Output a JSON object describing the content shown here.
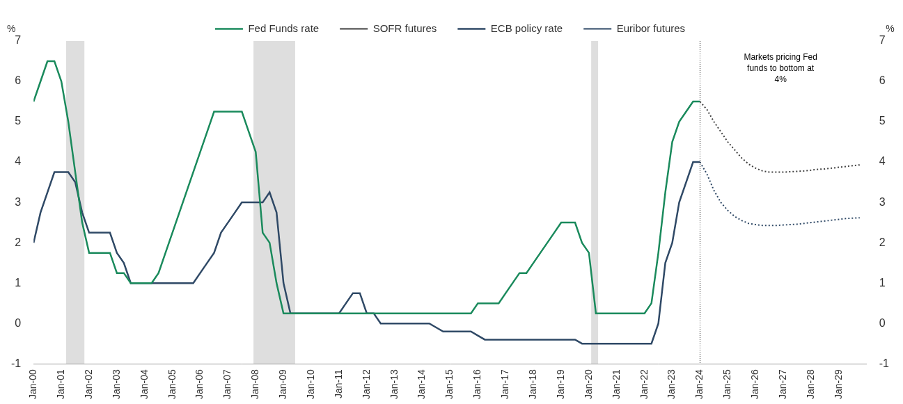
{
  "chart_data": {
    "type": "line",
    "y_label": "%",
    "y2_label": "%",
    "annotation": [
      "Markets pricing Fed",
      "funds to bottom at",
      "4%"
    ],
    "legend": "top",
    "grid": false,
    "xlim": [
      2000,
      2030
    ],
    "xticks": [
      {
        "value": 2000,
        "label": "Jan-00"
      },
      {
        "value": 2001,
        "label": "Jan-01"
      },
      {
        "value": 2002,
        "label": "Jan-02"
      },
      {
        "value": 2003,
        "label": "Jan-03"
      },
      {
        "value": 2004,
        "label": "Jan-04"
      },
      {
        "value": 2005,
        "label": "Jan-05"
      },
      {
        "value": 2006,
        "label": "Jan-06"
      },
      {
        "value": 2007,
        "label": "Jan-07"
      },
      {
        "value": 2008,
        "label": "Jan-08"
      },
      {
        "value": 2009,
        "label": "Jan-09"
      },
      {
        "value": 2010,
        "label": "Jan-10"
      },
      {
        "value": 2011,
        "label": "Jan-11"
      },
      {
        "value": 2012,
        "label": "Jan-12"
      },
      {
        "value": 2013,
        "label": "Jan-13"
      },
      {
        "value": 2014,
        "label": "Jan-14"
      },
      {
        "value": 2015,
        "label": "Jan-15"
      },
      {
        "value": 2016,
        "label": "Jan-16"
      },
      {
        "value": 2017,
        "label": "Jan-17"
      },
      {
        "value": 2018,
        "label": "Jan-18"
      },
      {
        "value": 2019,
        "label": "Jan-19"
      },
      {
        "value": 2020,
        "label": "Jan-20"
      },
      {
        "value": 2021,
        "label": "Jan-21"
      },
      {
        "value": 2022,
        "label": "Jan-22"
      },
      {
        "value": 2023,
        "label": "Jan-23"
      },
      {
        "value": 2024,
        "label": "Jan-24"
      },
      {
        "value": 2025,
        "label": "Jan-25"
      },
      {
        "value": 2026,
        "label": "Jan-26"
      },
      {
        "value": 2027,
        "label": "Jan-27"
      },
      {
        "value": 2028,
        "label": "Jan-28"
      },
      {
        "value": 2029,
        "label": "Jan-29"
      }
    ],
    "ylim": [
      -1,
      7
    ],
    "yticks": [
      -1,
      0,
      1,
      2,
      3,
      4,
      5,
      6,
      7
    ],
    "y2lim": [
      -1,
      7
    ],
    "y2ticks": [
      -1,
      0,
      1,
      2,
      3,
      4,
      5,
      6,
      7
    ],
    "shaded_periods": [
      {
        "from": 2001.17,
        "to": 2001.83
      },
      {
        "from": 2007.92,
        "to": 2009.42
      },
      {
        "from": 2020.08,
        "to": 2020.33
      }
    ],
    "forecast_start": 2024,
    "x": [
      2000,
      2000.25,
      2000.5,
      2000.75,
      2001,
      2001.25,
      2001.5,
      2001.75,
      2002,
      2002.25,
      2002.5,
      2002.75,
      2003,
      2003.25,
      2003.5,
      2003.75,
      2004,
      2004.25,
      2004.5,
      2004.75,
      2005,
      2005.25,
      2005.5,
      2005.75,
      2006,
      2006.25,
      2006.5,
      2006.75,
      2007,
      2007.25,
      2007.5,
      2007.75,
      2008,
      2008.25,
      2008.5,
      2008.75,
      2009,
      2009.25,
      2009.5,
      2009.75,
      2010,
      2010.25,
      2010.5,
      2010.75,
      2011,
      2011.25,
      2011.5,
      2011.75,
      2012,
      2012.25,
      2012.5,
      2012.75,
      2013,
      2013.25,
      2013.5,
      2013.75,
      2014,
      2014.25,
      2014.5,
      2014.75,
      2015,
      2015.25,
      2015.5,
      2015.75,
      2016,
      2016.25,
      2016.5,
      2016.75,
      2017,
      2017.25,
      2017.5,
      2017.75,
      2018,
      2018.25,
      2018.5,
      2018.75,
      2019,
      2019.25,
      2019.5,
      2019.75,
      2020,
      2020.25,
      2020.5,
      2020.75,
      2021,
      2021.25,
      2021.5,
      2021.75,
      2022,
      2022.25,
      2022.5,
      2022.75,
      2023,
      2023.25,
      2023.5,
      2023.75,
      2024,
      2024.25,
      2024.5,
      2024.75,
      2025,
      2025.25,
      2025.5,
      2025.75,
      2026,
      2026.25,
      2026.5,
      2026.75,
      2027,
      2027.25,
      2027.5,
      2027.75,
      2028,
      2028.25,
      2028.5,
      2028.75,
      2029,
      2029.25,
      2029.5,
      2029.75
    ],
    "series": [
      {
        "name": "Fed Funds rate",
        "color": "#1a8a5c",
        "line_style": "solid",
        "values": [
          5.5,
          6.0,
          6.5,
          6.5,
          6.0,
          5.0,
          3.75,
          2.5,
          1.75,
          1.75,
          1.75,
          1.75,
          1.25,
          1.25,
          1.0,
          1.0,
          1.0,
          1.0,
          1.25,
          1.75,
          2.25,
          2.75,
          3.25,
          3.75,
          4.25,
          4.75,
          5.25,
          5.25,
          5.25,
          5.25,
          5.25,
          4.75,
          4.25,
          2.25,
          2.0,
          1.0,
          0.25,
          0.25,
          0.25,
          0.25,
          0.25,
          0.25,
          0.25,
          0.25,
          0.25,
          0.25,
          0.25,
          0.25,
          0.25,
          0.25,
          0.25,
          0.25,
          0.25,
          0.25,
          0.25,
          0.25,
          0.25,
          0.25,
          0.25,
          0.25,
          0.25,
          0.25,
          0.25,
          0.25,
          0.5,
          0.5,
          0.5,
          0.5,
          0.75,
          1.0,
          1.25,
          1.25,
          1.5,
          1.75,
          2.0,
          2.25,
          2.5,
          2.5,
          2.5,
          2.0,
          1.75,
          0.25,
          0.25,
          0.25,
          0.25,
          0.25,
          0.25,
          0.25,
          0.25,
          0.5,
          1.75,
          3.25,
          4.5,
          5.0,
          5.25,
          5.5,
          5.5,
          null,
          null,
          null,
          null,
          null,
          null,
          null,
          null,
          null,
          null,
          null,
          null,
          null,
          null,
          null,
          null,
          null,
          null,
          null,
          null,
          null,
          null,
          null
        ]
      },
      {
        "name": "SOFR futures",
        "color": "#404040",
        "line_style": "dotted",
        "values": [
          null,
          null,
          null,
          null,
          null,
          null,
          null,
          null,
          null,
          null,
          null,
          null,
          null,
          null,
          null,
          null,
          null,
          null,
          null,
          null,
          null,
          null,
          null,
          null,
          null,
          null,
          null,
          null,
          null,
          null,
          null,
          null,
          null,
          null,
          null,
          null,
          null,
          null,
          null,
          null,
          null,
          null,
          null,
          null,
          null,
          null,
          null,
          null,
          null,
          null,
          null,
          null,
          null,
          null,
          null,
          null,
          null,
          null,
          null,
          null,
          null,
          null,
          null,
          null,
          null,
          null,
          null,
          null,
          null,
          null,
          null,
          null,
          null,
          null,
          null,
          null,
          null,
          null,
          null,
          null,
          null,
          null,
          null,
          null,
          null,
          null,
          null,
          null,
          null,
          null,
          null,
          null,
          null,
          null,
          null,
          null,
          5.5,
          5.3,
          5.0,
          4.75,
          4.5,
          4.3,
          4.1,
          3.95,
          3.85,
          3.78,
          3.75,
          3.75,
          3.75,
          3.76,
          3.77,
          3.78,
          3.8,
          3.82,
          3.83,
          3.85,
          3.87,
          3.89,
          3.91,
          3.93
        ]
      },
      {
        "name": "ECB policy rate",
        "color": "#2f4966",
        "line_style": "solid",
        "values": [
          2.0,
          2.75,
          3.25,
          3.75,
          3.75,
          3.75,
          3.5,
          2.75,
          2.25,
          2.25,
          2.25,
          2.25,
          1.75,
          1.5,
          1.0,
          1.0,
          1.0,
          1.0,
          1.0,
          1.0,
          1.0,
          1.0,
          1.0,
          1.0,
          1.25,
          1.5,
          1.75,
          2.25,
          2.5,
          2.75,
          3.0,
          3.0,
          3.0,
          3.0,
          3.25,
          2.75,
          1.0,
          0.25,
          0.25,
          0.25,
          0.25,
          0.25,
          0.25,
          0.25,
          0.25,
          0.5,
          0.75,
          0.75,
          0.25,
          0.25,
          0.0,
          0.0,
          0.0,
          0.0,
          0.0,
          0.0,
          0.0,
          0.0,
          -0.1,
          -0.2,
          -0.2,
          -0.2,
          -0.2,
          -0.2,
          -0.3,
          -0.4,
          -0.4,
          -0.4,
          -0.4,
          -0.4,
          -0.4,
          -0.4,
          -0.4,
          -0.4,
          -0.4,
          -0.4,
          -0.4,
          -0.4,
          -0.4,
          -0.5,
          -0.5,
          -0.5,
          -0.5,
          -0.5,
          -0.5,
          -0.5,
          -0.5,
          -0.5,
          -0.5,
          -0.5,
          0.0,
          1.5,
          2.0,
          3.0,
          3.5,
          4.0,
          4.0,
          null,
          null,
          null,
          null,
          null,
          null,
          null,
          null,
          null,
          null,
          null,
          null,
          null,
          null,
          null,
          null,
          null,
          null,
          null,
          null,
          null,
          null,
          null
        ]
      },
      {
        "name": "Euribor futures",
        "color": "#2f4966",
        "line_style": "dotted",
        "values": [
          null,
          null,
          null,
          null,
          null,
          null,
          null,
          null,
          null,
          null,
          null,
          null,
          null,
          null,
          null,
          null,
          null,
          null,
          null,
          null,
          null,
          null,
          null,
          null,
          null,
          null,
          null,
          null,
          null,
          null,
          null,
          null,
          null,
          null,
          null,
          null,
          null,
          null,
          null,
          null,
          null,
          null,
          null,
          null,
          null,
          null,
          null,
          null,
          null,
          null,
          null,
          null,
          null,
          null,
          null,
          null,
          null,
          null,
          null,
          null,
          null,
          null,
          null,
          null,
          null,
          null,
          null,
          null,
          null,
          null,
          null,
          null,
          null,
          null,
          null,
          null,
          null,
          null,
          null,
          null,
          null,
          null,
          null,
          null,
          null,
          null,
          null,
          null,
          null,
          null,
          null,
          null,
          null,
          null,
          null,
          null,
          4.0,
          3.7,
          3.3,
          3.0,
          2.8,
          2.65,
          2.55,
          2.48,
          2.45,
          2.43,
          2.43,
          2.43,
          2.44,
          2.45,
          2.46,
          2.48,
          2.5,
          2.52,
          2.54,
          2.56,
          2.58,
          2.6,
          2.61,
          2.62
        ]
      }
    ]
  }
}
